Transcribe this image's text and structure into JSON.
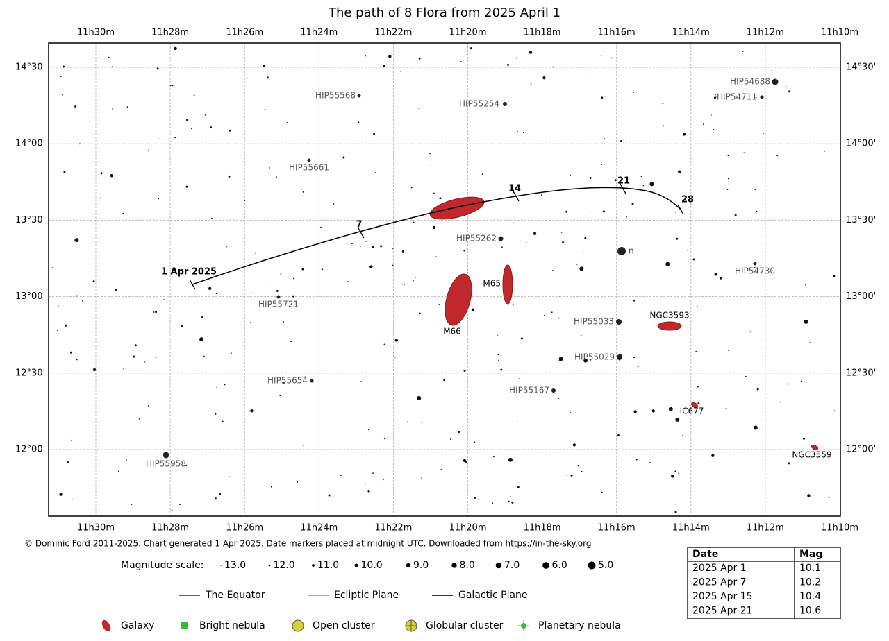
{
  "title": "The path of 8 Flora from 2025 April 1",
  "ra_labels": [
    "11h30m",
    "11h28m",
    "11h26m",
    "11h24m",
    "11h22m",
    "11h20m",
    "11h18m",
    "11h16m",
    "11h14m",
    "11h12m",
    "11h10m"
  ],
  "dec_labels": [
    "14°30'",
    "14°00'",
    "13°30'",
    "13°00'",
    "12°30'",
    "12°00'"
  ],
  "objects": [
    "HIP55568",
    "HIP55254",
    "HIP54688",
    "HIP54711",
    "HIP55661",
    "HIP55262",
    "n",
    "HIP54730",
    "HIP55721",
    "M65",
    "M66",
    "HIP55033",
    "NGC3593",
    "HIP55029",
    "HIP55654",
    "HIP55167",
    "IC677",
    "HIP55958",
    "NGC3559"
  ],
  "path_markers": [
    "1 Apr 2025",
    "7",
    "14",
    "21",
    "28"
  ],
  "credit": "© Dominic Ford 2011-2025. Chart generated 1 Apr 2025. Date markers placed at midnight UTC. Downloaded from https://in-the-sky.org",
  "magnitude_scale": {
    "label": "Magnitude scale:",
    "items": [
      "13.0",
      "12.0",
      "11.0",
      "10.0",
      "9.0",
      "8.0",
      "7.0",
      "6.0",
      "5.0"
    ]
  },
  "line_legend": [
    "The Equator",
    "Ecliptic Plane",
    "Galactic Plane"
  ],
  "object_legend": [
    "Galaxy",
    "Bright nebula",
    "Open cluster",
    "Globular cluster",
    "Planetary nebula"
  ],
  "table": {
    "header": [
      "Date",
      "Mag"
    ],
    "rows": [
      [
        "2025 Apr 1",
        "10.1"
      ],
      [
        "2025 Apr 7",
        "10.2"
      ],
      [
        "2025 Apr 15",
        "10.4"
      ],
      [
        "2025 Apr 21",
        "10.6"
      ]
    ]
  }
}
